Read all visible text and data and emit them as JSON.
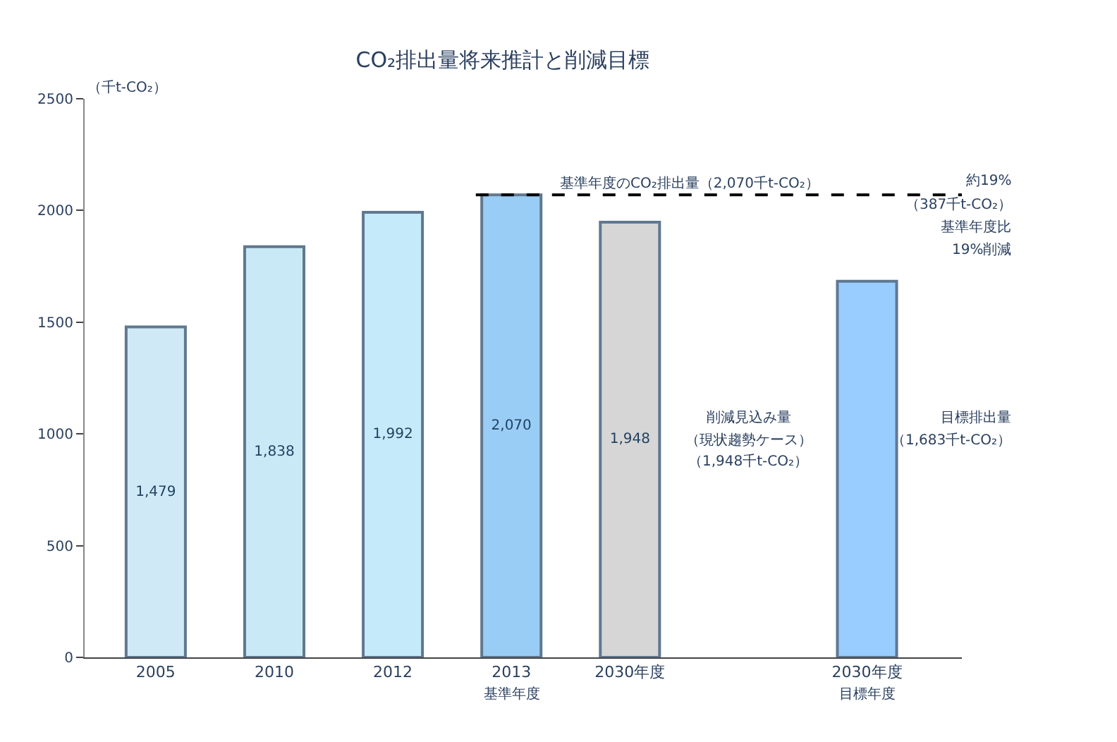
{
  "chart_data": {
    "type": "bar",
    "title": "CO₂排出量将来推計と削減目標",
    "ylabel": "（千t-CO₂）",
    "categories": [
      "2005",
      "2010",
      "2012",
      "2013",
      "2030年度",
      null,
      "2030年度"
    ],
    "values": [
      1479,
      1838,
      1992,
      2070,
      1948,
      null,
      1683
    ],
    "colors": [
      "#cfe9f7",
      "#c9e9f7",
      "#c5eafa",
      "#99cdf5",
      "#d6d6d6",
      "#ffffff",
      "#99ccff"
    ],
    "value_labels": [
      "1,479",
      "1,838",
      "1,992",
      "2,070",
      "1,948",
      null,
      null
    ],
    "ylim": [
      0,
      2500
    ],
    "yticks": [
      0,
      500,
      1000,
      1500,
      2000,
      2500
    ],
    "ref_lines": [
      {
        "axis": "y",
        "value": 2070,
        "label": "基準年度のCO₂排出量（2,070千t-CO₂）",
        "line_style": "dashed",
        "color": "#000000"
      }
    ],
    "annotations": [
      "基準年度",
      "目標年度",
      "削減見込み量",
      "（現状趨勢ケース）",
      "（1,948千t-CO₂）",
      "目標排出量",
      "（1,683千t-CO₂）",
      "約19%",
      "（387千t-CO₂）",
      "基準年度比",
      "19%削減"
    ]
  }
}
